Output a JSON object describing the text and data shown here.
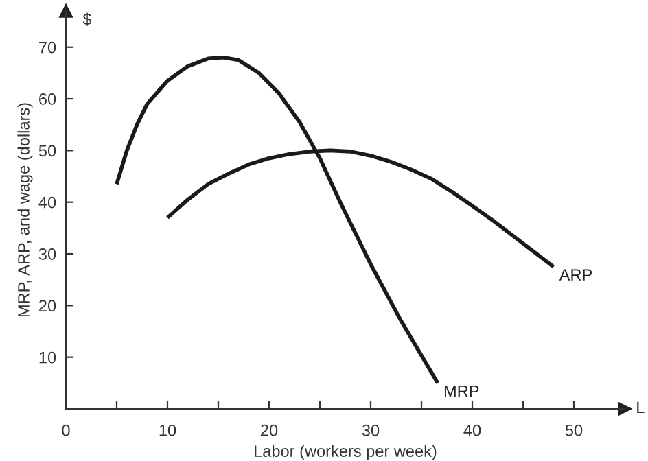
{
  "chart_data": {
    "type": "line",
    "xlabel": "Labor (workers per week)",
    "ylabel": "MRP, ARP, and wage (dollars)",
    "annotations": [
      "$",
      "L"
    ],
    "xlim": [
      0,
      55
    ],
    "ylim": [
      0,
      77
    ],
    "xticks": [
      0,
      {
        "value": 5,
        "label": null
      },
      10,
      {
        "value": 15,
        "label": null
      },
      20,
      {
        "value": 25,
        "label": null
      },
      30,
      {
        "value": 35,
        "label": null
      },
      40,
      {
        "value": 45,
        "label": null
      },
      50
    ],
    "yticks": [
      10,
      20,
      30,
      40,
      50,
      60,
      70
    ],
    "grid": false,
    "legend": false,
    "marker": "none",
    "line_style": "solid",
    "series": [
      {
        "name": "MRP",
        "color": "#1a1a1a",
        "x": [
          5,
          6,
          7,
          8,
          10,
          12,
          14,
          15.5,
          17,
          19,
          21,
          23,
          25,
          27,
          30,
          33,
          36.6
        ],
        "values": [
          43.5,
          50,
          55,
          59,
          63.5,
          66.3,
          67.8,
          68,
          67.5,
          65,
          61,
          55.5,
          48.5,
          40,
          28,
          17,
          5
        ]
      },
      {
        "name": "ARP",
        "color": "#1a1a1a",
        "x": [
          10,
          12,
          14,
          16,
          18,
          20,
          22,
          24,
          26,
          28,
          30,
          32,
          34,
          36,
          38,
          40,
          42,
          44,
          46,
          48
        ],
        "values": [
          37,
          40.5,
          43.5,
          45.5,
          47.3,
          48.5,
          49.3,
          49.8,
          50,
          49.8,
          49,
          47.8,
          46.3,
          44.5,
          42,
          39.3,
          36.5,
          33.5,
          30.5,
          27.5
        ]
      }
    ]
  }
}
